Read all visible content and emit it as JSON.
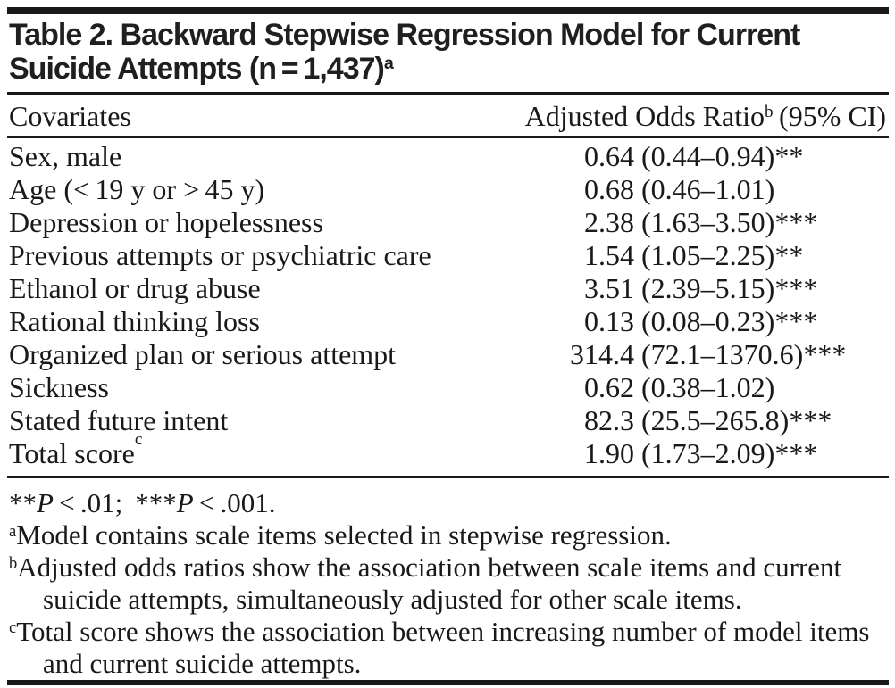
{
  "table": {
    "title": {
      "line1": "Table 2. Backward Stepwise Regression Model for Current",
      "line2": "Suicide Attempts (n = 1,437)",
      "sup": "a"
    },
    "header": {
      "covariates": "Covariates",
      "odds": "Adjusted Odds Ratio",
      "odds_sup": "b",
      "odds_rest": " (95% CI)"
    },
    "rows": [
      {
        "label": "Sex, male",
        "sup": "",
        "num": "0.64",
        "ci": "(0.44–0.94)**"
      },
      {
        "label": "Age (< 19 y or > 45 y)",
        "sup": "",
        "num": "0.68",
        "ci": "(0.46–1.01)"
      },
      {
        "label": "Depression or hopelessness",
        "sup": "",
        "num": "2.38",
        "ci": "(1.63–3.50)***"
      },
      {
        "label": "Previous attempts or psychiatric care",
        "sup": "",
        "num": "1.54",
        "ci": "(1.05–2.25)**"
      },
      {
        "label": "Ethanol or drug abuse",
        "sup": "",
        "num": "3.51",
        "ci": "(2.39–5.15)***"
      },
      {
        "label": "Rational thinking loss",
        "sup": "",
        "num": "0.13",
        "ci": "(0.08–0.23)***"
      },
      {
        "label": "Organized plan or serious attempt",
        "sup": "",
        "num": "314.4",
        "ci": "(72.1–1370.6)***"
      },
      {
        "label": "Sickness",
        "sup": "",
        "num": "0.62",
        "ci": "(0.38–1.02)"
      },
      {
        "label": "Stated future intent",
        "sup": "",
        "num": "82.3",
        "ci": "(25.5–265.8)***"
      },
      {
        "label": "Total score",
        "sup": "c",
        "num": "1.90",
        "ci": "(1.73–2.09)***"
      }
    ],
    "footnotes": {
      "sig": {
        "star1": "**",
        "p1": "P",
        "rest1": " < .01;",
        "star2": "***",
        "p2": "P",
        "rest2": " < .001."
      },
      "a": {
        "sup": "a",
        "text": "Model contains scale items selected in stepwise regression."
      },
      "b": {
        "sup": "b",
        "text": "Adjusted odds ratios show the association between scale items and current suicide attempts, simultaneously adjusted for other scale items."
      },
      "c": {
        "sup": "c",
        "text": "Total score shows the association between increasing number of model items and current suicide attempts."
      }
    }
  }
}
